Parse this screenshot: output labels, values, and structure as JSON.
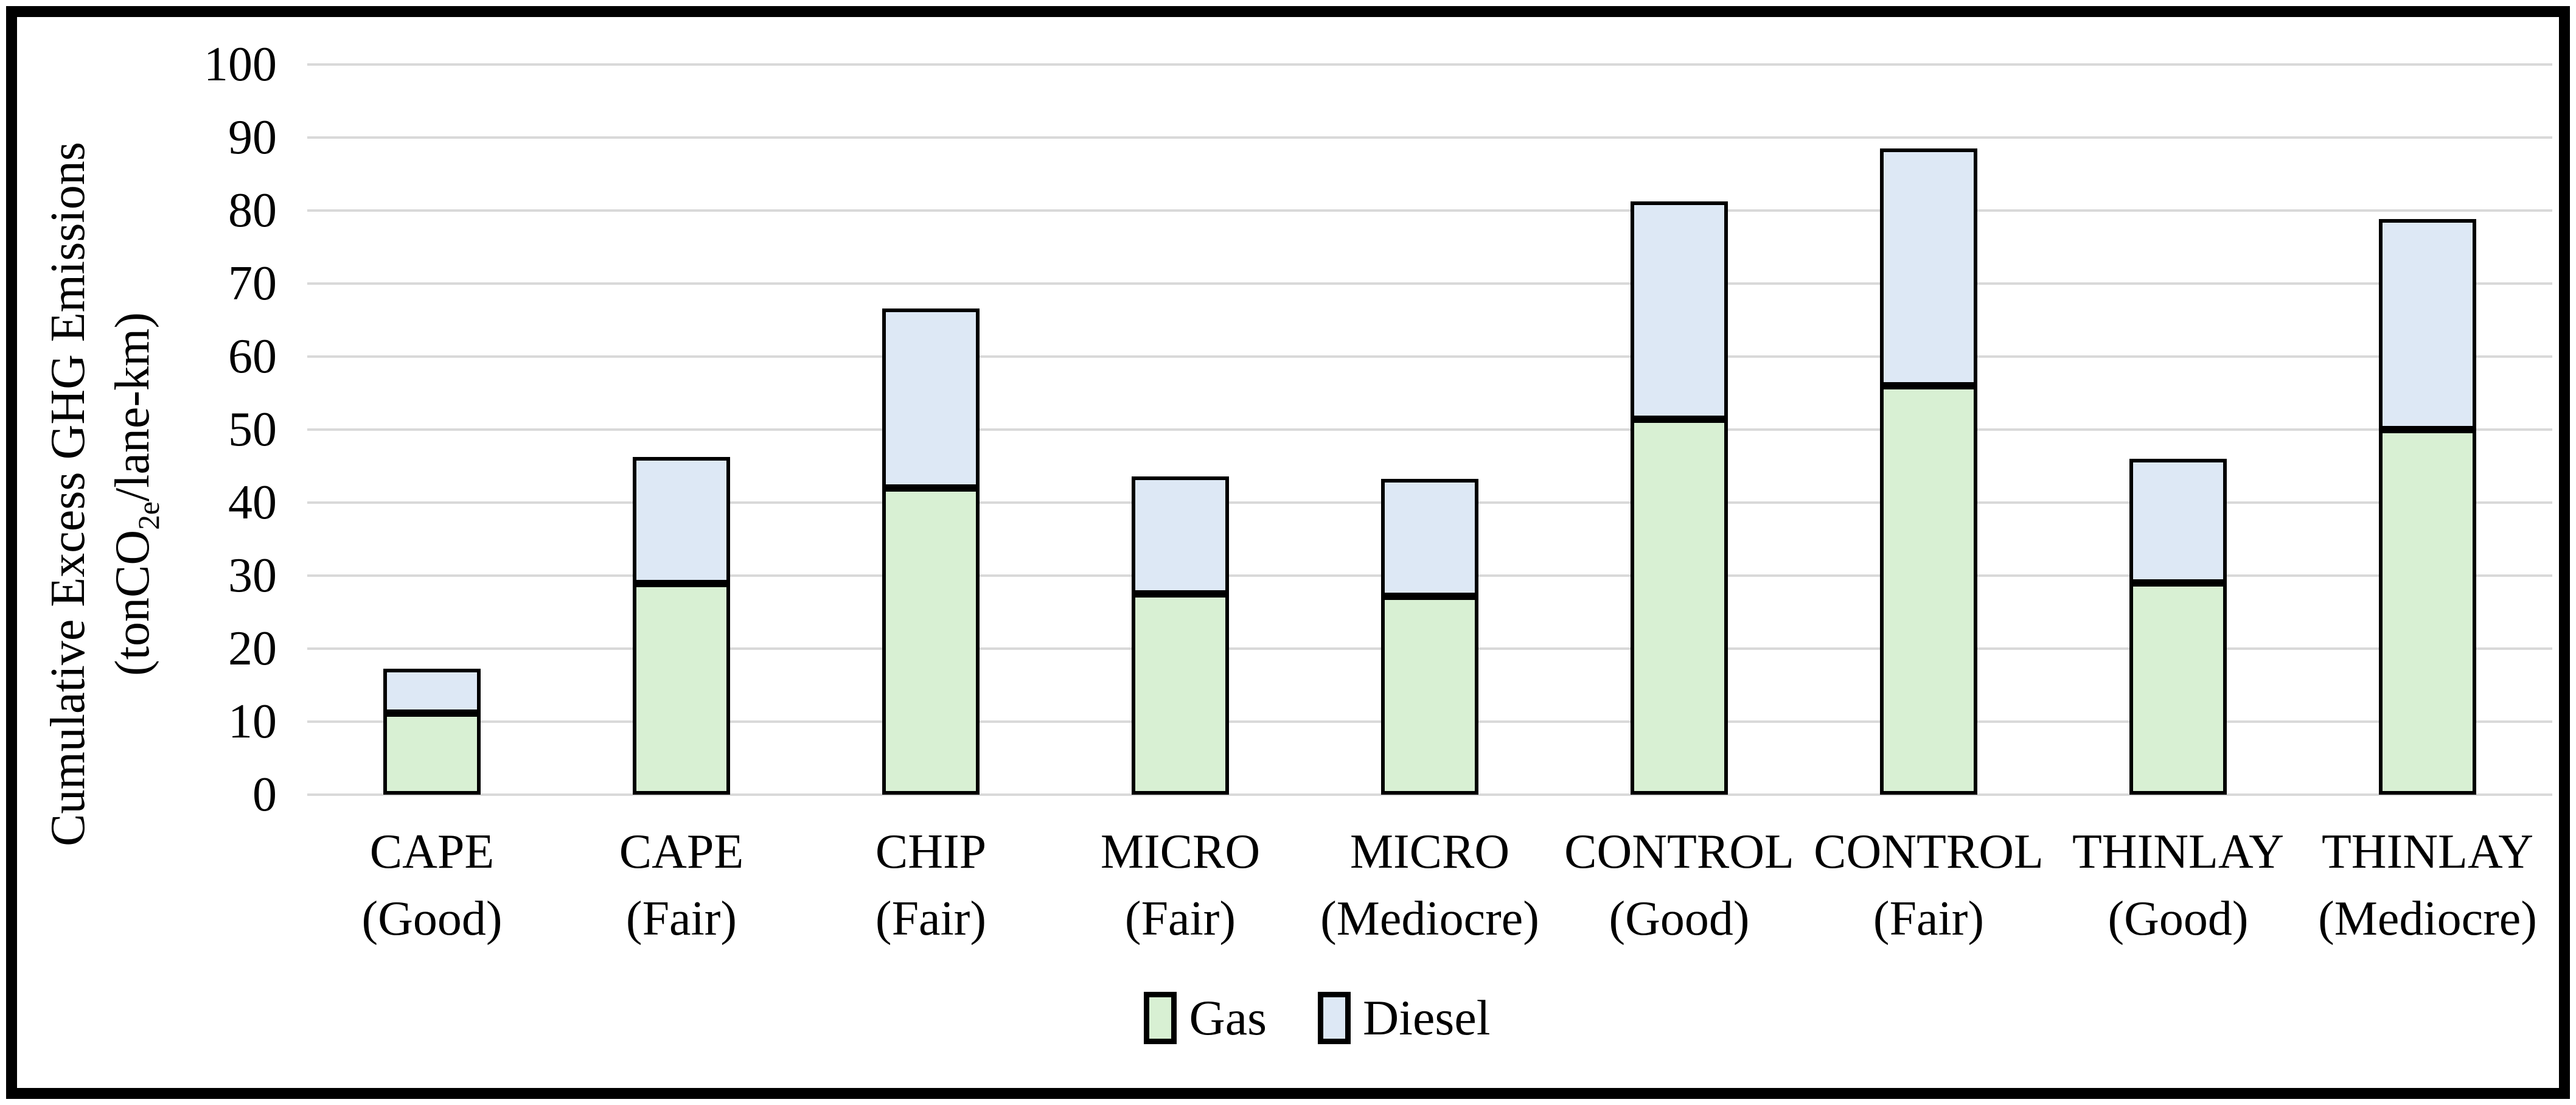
{
  "chart_data": {
    "type": "bar",
    "stacked": true,
    "categories": [
      "CAPE",
      "CAPE",
      "CHIP",
      "MICRO",
      "MICRO",
      "CONTROL",
      "CONTROL",
      "THINLAY",
      "THINLAY"
    ],
    "category_conditions": [
      "(Good)",
      "(Fair)",
      "(Fair)",
      "(Fair)",
      "(Mediocre)",
      "(Good)",
      "(Fair)",
      "(Good)",
      "(Mediocre)"
    ],
    "series": [
      {
        "name": "Gas",
        "color": "#d8f0d3",
        "values": [
          11.2,
          28.9,
          42.0,
          27.5,
          27.2,
          51.4,
          56.0,
          29.0,
          50.0
        ]
      },
      {
        "name": "Diesel",
        "color": "#dde8f5",
        "values": [
          6.1,
          17.3,
          24.6,
          16.1,
          16.1,
          29.8,
          32.5,
          17.0,
          28.8
        ]
      }
    ],
    "ylabel_line1": "Cumulative Excess GHG Emissions",
    "ylabel_line2_prefix": "(tonCO",
    "ylabel_subscript": "2e",
    "ylabel_line2_suffix": "/lane-km)",
    "yticks": [
      0,
      10,
      20,
      30,
      40,
      50,
      60,
      70,
      80,
      90,
      100
    ],
    "ylim": [
      0,
      100
    ],
    "grid": "horizontal",
    "gridline_color": "#d9d9d9",
    "frame_color": "#000000",
    "legend": {
      "position": "bottom",
      "items": [
        {
          "label": "Gas",
          "color": "#d8f0d3"
        },
        {
          "label": "Diesel",
          "color": "#dde8f5"
        }
      ]
    }
  }
}
